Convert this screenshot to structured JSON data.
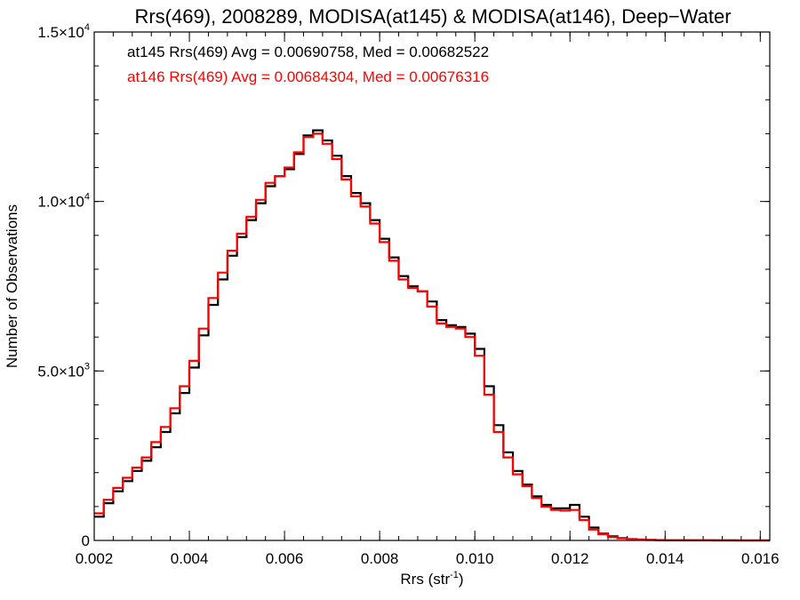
{
  "chart_data": {
    "type": "line",
    "title": "Rrs(469), 2008289, MODISA(at145) & MODISA(at146), Deep−Water",
    "xlabel": "Rrs (str",
    "xlabel_sup": "-1",
    "xlabel_end": ")",
    "ylabel": "Number of Observations",
    "xlim": [
      0.002,
      0.0162
    ],
    "ylim": [
      0,
      15000
    ],
    "x_ticks": [
      {
        "value": 0.002,
        "label": "0.002"
      },
      {
        "value": 0.004,
        "label": "0.004"
      },
      {
        "value": 0.006,
        "label": "0.006"
      },
      {
        "value": 0.008,
        "label": "0.008"
      },
      {
        "value": 0.01,
        "label": "0.010"
      },
      {
        "value": 0.012,
        "label": "0.012"
      },
      {
        "value": 0.014,
        "label": "0.014"
      },
      {
        "value": 0.016,
        "label": "0.016"
      }
    ],
    "y_ticks": [
      {
        "value": 0,
        "label": "0",
        "sup": ""
      },
      {
        "value": 5000,
        "label": "5.0×10",
        "sup": "3"
      },
      {
        "value": 10000,
        "label": "1.0×10",
        "sup": "4"
      },
      {
        "value": 15000,
        "label": "1.5×10",
        "sup": "4"
      }
    ],
    "x_minor_step": 0.0004,
    "y_minor_step": 1000,
    "annotations": [
      {
        "text": "at145 Rrs(469) Avg = 0.00690758, Med = 0.00682522",
        "color": "#000000"
      },
      {
        "text": "at146 Rrs(469) Avg = 0.00684304, Med = 0.00676316",
        "color": "#ff0000"
      }
    ],
    "series": [
      {
        "color": "#000000",
        "x": [
          0.002,
          0.0022,
          0.0024,
          0.0026,
          0.0028,
          0.003,
          0.0032,
          0.0034,
          0.0036,
          0.0038,
          0.004,
          0.0042,
          0.0044,
          0.0046,
          0.0048,
          0.005,
          0.0052,
          0.0054,
          0.0056,
          0.0058,
          0.006,
          0.0062,
          0.0064,
          0.0066,
          0.0068,
          0.007,
          0.0072,
          0.0074,
          0.0076,
          0.0078,
          0.008,
          0.0082,
          0.0084,
          0.0086,
          0.0088,
          0.009,
          0.0092,
          0.0094,
          0.0096,
          0.0098,
          0.01,
          0.0102,
          0.0104,
          0.0106,
          0.0108,
          0.011,
          0.0112,
          0.0114,
          0.0116,
          0.0118,
          0.012,
          0.0122,
          0.0124,
          0.0126,
          0.0128,
          0.013,
          0.0132,
          0.0134,
          0.0136,
          0.0138,
          0.014,
          0.0145,
          0.015,
          0.0155,
          0.016,
          0.0162
        ],
        "y": [
          700,
          1100,
          1450,
          1750,
          2050,
          2350,
          2750,
          3200,
          3750,
          4350,
          5100,
          6050,
          6950,
          7700,
          8400,
          8950,
          9450,
          9950,
          10450,
          10750,
          10950,
          11400,
          11950,
          12100,
          11800,
          11350,
          10750,
          10250,
          9950,
          9450,
          8900,
          8350,
          7800,
          7500,
          7350,
          7050,
          6500,
          6350,
          6300,
          6100,
          5650,
          4550,
          3400,
          2600,
          2050,
          1650,
          1300,
          1050,
          950,
          950,
          1050,
          700,
          380,
          200,
          120,
          70,
          40,
          25,
          15,
          10,
          5,
          3,
          2,
          1,
          0,
          0
        ]
      },
      {
        "color": "#ff0000",
        "x": [
          0.002,
          0.0022,
          0.0024,
          0.0026,
          0.0028,
          0.003,
          0.0032,
          0.0034,
          0.0036,
          0.0038,
          0.004,
          0.0042,
          0.0044,
          0.0046,
          0.0048,
          0.005,
          0.0052,
          0.0054,
          0.0056,
          0.0058,
          0.006,
          0.0062,
          0.0064,
          0.0066,
          0.0068,
          0.007,
          0.0072,
          0.0074,
          0.0076,
          0.0078,
          0.008,
          0.0082,
          0.0084,
          0.0086,
          0.0088,
          0.009,
          0.0092,
          0.0094,
          0.0096,
          0.0098,
          0.01,
          0.0102,
          0.0104,
          0.0106,
          0.0108,
          0.011,
          0.0112,
          0.0114,
          0.0116,
          0.0118,
          0.012,
          0.0122,
          0.0124,
          0.0126,
          0.0128,
          0.013,
          0.0132,
          0.0134,
          0.0136,
          0.0138,
          0.014,
          0.0145,
          0.015,
          0.0155,
          0.016,
          0.0162
        ],
        "y": [
          800,
          1200,
          1550,
          1850,
          2150,
          2450,
          2900,
          3350,
          3900,
          4550,
          5300,
          6250,
          7150,
          7900,
          8550,
          9050,
          9550,
          10050,
          10550,
          10750,
          11000,
          11450,
          11900,
          12000,
          11700,
          11250,
          10650,
          10150,
          9850,
          9350,
          8800,
          8250,
          7700,
          7450,
          7350,
          6900,
          6400,
          6300,
          6250,
          6000,
          5450,
          4300,
          3200,
          2450,
          1950,
          1600,
          1250,
          1000,
          900,
          880,
          900,
          600,
          320,
          180,
          100,
          60,
          35,
          20,
          12,
          8,
          4,
          2,
          1,
          1,
          0,
          0
        ]
      }
    ]
  }
}
